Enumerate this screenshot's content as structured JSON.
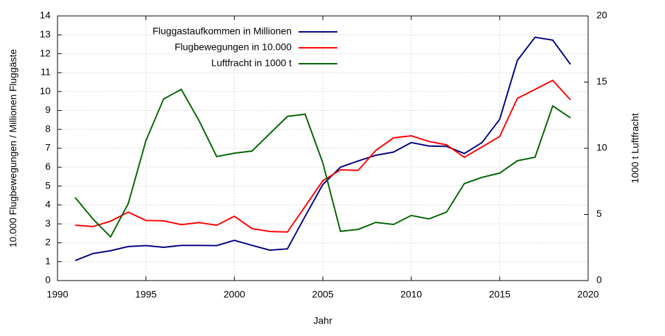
{
  "chart_data": {
    "type": "line",
    "xlabel": "Jahr",
    "ylabel": "10.000 Flugbewegungen / Millionen Fluggäste",
    "y2label": "1000 t Luftfracht",
    "x": [
      1991,
      1992,
      1993,
      1994,
      1995,
      1996,
      1997,
      1998,
      1999,
      2000,
      2001,
      2002,
      2003,
      2004,
      2005,
      2006,
      2007,
      2008,
      2009,
      2010,
      2011,
      2012,
      2013,
      2014,
      2015,
      2016,
      2017,
      2018,
      2019
    ],
    "series": [
      {
        "name": "Fluggastaufkommen in Millionen",
        "color": "#000080",
        "values": [
          1.06,
          1.43,
          1.58,
          1.8,
          1.85,
          1.76,
          1.86,
          1.86,
          1.85,
          2.13,
          1.86,
          1.61,
          1.68,
          3.4,
          5.08,
          6.0,
          6.33,
          6.63,
          6.8,
          7.3,
          7.12,
          7.1,
          6.72,
          7.3,
          8.53,
          11.65,
          12.87,
          12.72,
          11.44
        ]
      },
      {
        "name": "Flugbewegungen in 10.000",
        "color": "#ff0000",
        "values": [
          2.93,
          2.86,
          3.14,
          3.62,
          3.18,
          3.16,
          2.96,
          3.07,
          2.93,
          3.4,
          2.75,
          2.6,
          2.57,
          3.92,
          5.28,
          5.86,
          5.83,
          6.89,
          7.55,
          7.66,
          7.36,
          7.18,
          6.52,
          7.07,
          7.62,
          9.64,
          10.11,
          10.59,
          9.56
        ]
      },
      {
        "name": "Luftfracht in 1000 t",
        "color": "#006400",
        "axis": "y2",
        "values": [
          6.28,
          4.66,
          3.3,
          5.81,
          10.58,
          13.72,
          14.45,
          12.09,
          9.37,
          9.63,
          9.79,
          11.1,
          12.41,
          12.57,
          8.9,
          3.72,
          3.87,
          4.4,
          4.24,
          4.92,
          4.66,
          5.18,
          7.33,
          7.8,
          8.12,
          9.06,
          9.32,
          13.2,
          12.3
        ]
      }
    ],
    "xlim": [
      1990,
      2020
    ],
    "xticks": [
      1990,
      1995,
      2000,
      2005,
      2010,
      2015,
      2020
    ],
    "ylim": [
      0,
      14
    ],
    "yticks": [
      0,
      1,
      2,
      3,
      4,
      5,
      6,
      7,
      8,
      9,
      10,
      11,
      12,
      13,
      14
    ],
    "y2lim": [
      0,
      20
    ],
    "y2ticks": [
      0,
      5,
      10,
      15,
      20
    ],
    "grid": true,
    "legend": "upper-left"
  }
}
